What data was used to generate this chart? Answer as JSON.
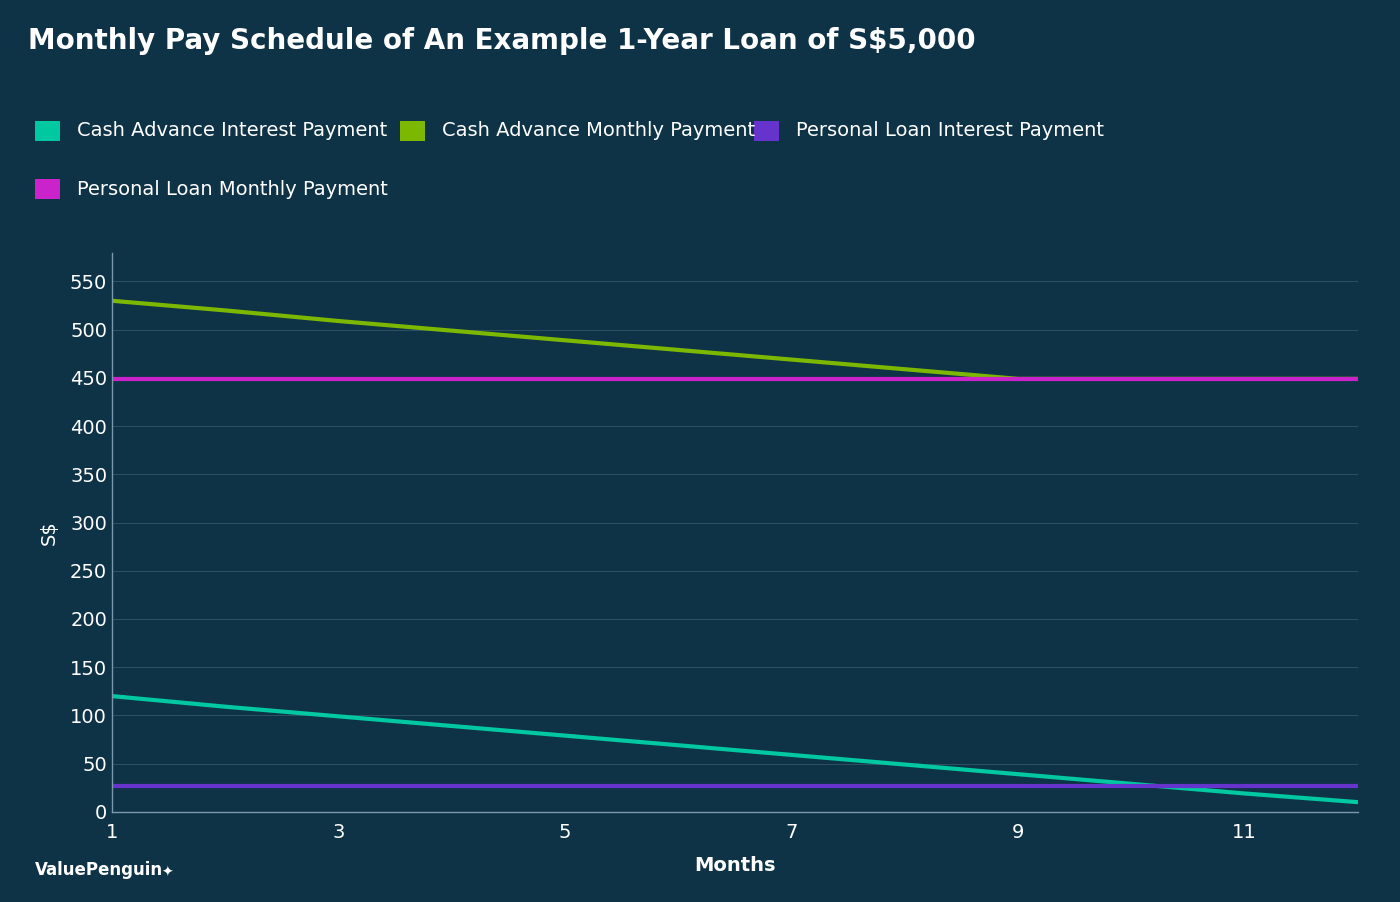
{
  "title": "Monthly Pay Schedule of An Example 1-Year Loan of S$5,000",
  "xlabel": "Months",
  "background_color": "#0e3347",
  "text_color": "#ffffff",
  "months": [
    1,
    2,
    3,
    4,
    5,
    6,
    7,
    8,
    9,
    10,
    11,
    12
  ],
  "cash_advance_monthly": [
    530,
    520,
    509,
    499,
    489,
    479,
    469,
    459,
    449,
    449,
    449,
    449
  ],
  "personal_loan_monthly": [
    449,
    449,
    449,
    449,
    449,
    449,
    449,
    449,
    449,
    449,
    449,
    449
  ],
  "cash_advance_interest": [
    120,
    109,
    99,
    89,
    79,
    69,
    59,
    49,
    39,
    29,
    19,
    10
  ],
  "personal_loan_interest": [
    27,
    27,
    27,
    27,
    27,
    27,
    27,
    27,
    27,
    27,
    27,
    27
  ],
  "cash_advance_monthly_color": "#7db800",
  "personal_loan_monthly_color": "#cc22cc",
  "cash_advance_interest_color": "#00c8a0",
  "personal_loan_interest_color": "#6633cc",
  "ylim": [
    0,
    580
  ],
  "yticks": [
    0,
    50,
    100,
    150,
    200,
    250,
    300,
    350,
    400,
    450,
    500,
    550
  ],
  "xticks": [
    1,
    3,
    5,
    7,
    9,
    11
  ],
  "xlim_end": 12,
  "line_width": 3,
  "title_fontsize": 20,
  "label_fontsize": 14,
  "tick_fontsize": 14,
  "legend_fontsize": 14,
  "legend_row1": [
    "Cash Advance Interest Payment",
    "Cash Advance Monthly Payment",
    "Personal Loan Interest Payment"
  ],
  "legend_row2": [
    "Personal Loan Monthly Payment"
  ],
  "legend_colors_row1": [
    "#00c8a0",
    "#7db800",
    "#6633cc"
  ],
  "legend_colors_row2": [
    "#cc22cc"
  ],
  "watermark": "ValuePenguin"
}
